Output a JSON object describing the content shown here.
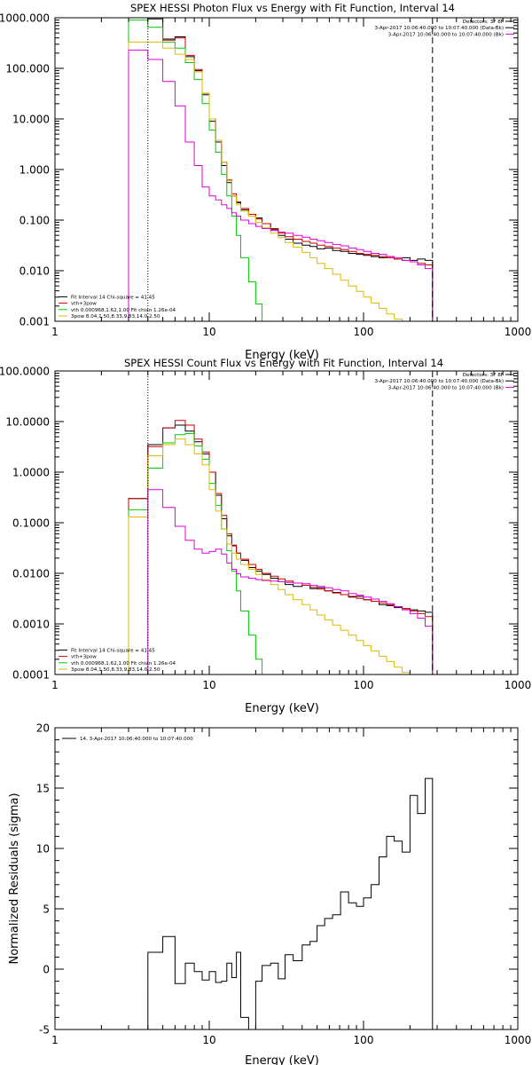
{
  "chart_data": [
    {
      "type": "line",
      "title": "SPEX HESSI Photon Flux vs Energy with Fit Function, Interval 14",
      "xlabel": "Energy (keV)",
      "ylabel": "",
      "xscale": "log",
      "yscale": "log",
      "xlim": [
        1,
        1000
      ],
      "ylim": [
        0.001,
        1000
      ],
      "x_ticks": [
        1,
        10,
        100,
        1000
      ],
      "x_tick_labels": [
        "1",
        "10",
        "100",
        "1000"
      ],
      "y_ticks": [
        0.001,
        0.01,
        0.1,
        1,
        10,
        100,
        1000
      ],
      "y_tick_labels": [
        "0.001",
        "0.010",
        "0.100",
        "1.000",
        "10.000",
        "100.000",
        "1000.000"
      ],
      "vlines": [
        {
          "x": 4,
          "style": "dotted"
        },
        {
          "x": 280,
          "style": "dashed"
        }
      ],
      "legend_top": {
        "position": "top-right",
        "lines": [
          "Detectors: 3F 8F",
          "3-Apr-2017 10:06:40.000 to 10:07:40.000 (Data-Bk)",
          "3-Apr-2017 10:06:40.000 to 10:07:40.000 (Bk)"
        ],
        "colors": [
          "#000000",
          "#000000",
          "#dd00dd"
        ]
      },
      "legend_bottom": {
        "position": "bottom-left",
        "lines": [
          "Fit Interval 14    Chi-square = 41.45",
          "vth+3pow",
          "vth 0.000968,1.62,1.00  Fit chian 1.26e-04",
          "3pow 8.04,1.50,8.33,9.83,14.0,2.50"
        ],
        "colors": [
          "#000000",
          "#cc0000",
          "#00cc00",
          "#ddbb00"
        ]
      },
      "series": [
        {
          "color": "#000000",
          "edges": [
            3,
            4,
            5,
            6,
            7,
            8,
            9,
            10,
            11,
            12,
            13,
            14,
            15,
            16,
            18,
            20,
            22,
            25,
            28,
            31,
            35,
            40,
            45,
            50,
            56,
            63,
            71,
            80,
            90,
            100,
            112,
            126,
            141,
            158,
            178,
            200,
            224,
            251,
            280
          ],
          "values": [
            1000,
            950,
            380,
            420,
            170,
            90,
            30,
            9,
            3.5,
            1.2,
            0.55,
            0.3,
            0.22,
            0.16,
            0.13,
            0.11,
            0.085,
            0.065,
            0.05,
            0.042,
            0.035,
            0.032,
            0.03,
            0.027,
            0.028,
            0.025,
            0.024,
            0.022,
            0.021,
            0.02,
            0.019,
            0.018,
            0.019,
            0.017,
            0.018,
            0.016,
            0.017,
            0.016
          ]
        },
        {
          "color": "#cc0000",
          "edges": [
            3,
            4,
            5,
            6,
            7,
            8,
            9,
            10,
            11,
            12,
            13,
            14,
            15,
            16,
            18,
            20,
            22,
            25,
            28,
            31,
            35,
            40,
            45,
            50,
            56,
            63,
            71,
            80,
            90,
            100,
            112,
            126,
            141,
            158,
            178,
            200,
            224,
            251,
            280
          ],
          "values": [
            1000,
            1000,
            360,
            400,
            180,
            95,
            32,
            10,
            3.8,
            1.4,
            0.62,
            0.33,
            0.23,
            0.17,
            0.13,
            0.105,
            0.085,
            0.068,
            0.055,
            0.047,
            0.042,
            0.038,
            0.035,
            0.032,
            0.03,
            0.028,
            0.026,
            0.024,
            0.022,
            0.021,
            0.02,
            0.019,
            0.018,
            0.017,
            0.016,
            0.015,
            0.014,
            0.013
          ]
        },
        {
          "color": "#00cc00",
          "edges": [
            3,
            4,
            5,
            6,
            7,
            8,
            9,
            10,
            11,
            12,
            13,
            14,
            15,
            16,
            18,
            20,
            22,
            25
          ],
          "values": [
            900,
            650,
            330,
            250,
            130,
            60,
            20,
            6,
            2.2,
            0.8,
            0.3,
            0.12,
            0.05,
            0.018,
            0.006,
            0.0022,
            0.0008
          ]
        },
        {
          "color": "#ddbb00",
          "edges": [
            3,
            4,
            5,
            6,
            7,
            8,
            9,
            10,
            11,
            12,
            13,
            14,
            15,
            16,
            18,
            20,
            22,
            25,
            28,
            31,
            35,
            40,
            45,
            50,
            56,
            63,
            71,
            80,
            90,
            100,
            112,
            126,
            141,
            158,
            178,
            200
          ],
          "values": [
            330,
            330,
            250,
            190,
            150,
            85,
            32,
            10,
            3.8,
            1.4,
            0.6,
            0.3,
            0.2,
            0.15,
            0.12,
            0.09,
            0.07,
            0.055,
            0.045,
            0.036,
            0.029,
            0.023,
            0.018,
            0.014,
            0.011,
            0.0085,
            0.0065,
            0.005,
            0.0039,
            0.003,
            0.0023,
            0.0018,
            0.0014,
            0.0011,
            0.0008
          ]
        },
        {
          "color": "#dd00dd",
          "edges": [
            3,
            4,
            5,
            6,
            7,
            8,
            9,
            10,
            11,
            12,
            13,
            14,
            15,
            16,
            18,
            20,
            22,
            25,
            28,
            31,
            35,
            40,
            45,
            50,
            56,
            63,
            71,
            80,
            90,
            100,
            112,
            126,
            141,
            158,
            178,
            200,
            224,
            251,
            280
          ],
          "values": [
            230,
            150,
            55,
            18,
            3.5,
            1.2,
            0.45,
            0.3,
            0.25,
            0.2,
            0.17,
            0.14,
            0.12,
            0.1,
            0.085,
            0.075,
            0.068,
            0.062,
            0.058,
            0.055,
            0.05,
            0.046,
            0.042,
            0.039,
            0.036,
            0.033,
            0.031,
            0.028,
            0.026,
            0.024,
            0.022,
            0.021,
            0.019,
            0.018,
            0.016,
            0.015,
            0.013,
            0.011
          ]
        }
      ]
    },
    {
      "type": "line",
      "title": "SPEX HESSI Count Flux vs Energy with Fit Function, Interval 14",
      "xlabel": "Energy (keV)",
      "ylabel": "",
      "xscale": "log",
      "yscale": "log",
      "xlim": [
        1,
        1000
      ],
      "ylim": [
        0.0001,
        100
      ],
      "x_ticks": [
        1,
        10,
        100,
        1000
      ],
      "x_tick_labels": [
        "1",
        "10",
        "100",
        "1000"
      ],
      "y_ticks": [
        0.0001,
        0.001,
        0.01,
        0.1,
        1,
        10,
        100
      ],
      "y_tick_labels": [
        "0.0001",
        "0.0010",
        "0.0100",
        "0.1000",
        "1.0000",
        "10.0000",
        "100.0000"
      ],
      "vlines": [
        {
          "x": 4,
          "style": "dotted"
        },
        {
          "x": 280,
          "style": "dashed"
        }
      ],
      "legend_top": {
        "position": "top-right",
        "lines": [
          "Detectors: 3F 8F",
          "3-Apr-2017 10:06:40.000 to 10:07:40.000 (Data-Bk)",
          "3-Apr-2017 10:06:40.000 to 10:07:40.000 (Bk)"
        ],
        "colors": [
          "#000000",
          "#000000",
          "#dd00dd"
        ]
      },
      "legend_bottom": {
        "position": "bottom-left",
        "lines": [
          "Fit Interval 14    Chi-square = 41.45",
          "vth+3pow",
          "vth 0.000968,1.62,1.00  Fit chian 1.26e-04",
          "3pow 8.04,1.50,8.33,9.83,14.0,2.50"
        ],
        "colors": [
          "#000000",
          "#cc0000",
          "#00cc00",
          "#ddbb00"
        ]
      },
      "series": [
        {
          "color": "#000000",
          "edges": [
            3,
            4,
            5,
            6,
            7,
            8,
            9,
            10,
            11,
            12,
            13,
            14,
            15,
            16,
            18,
            20,
            22,
            25,
            28,
            31,
            35,
            40,
            45,
            50,
            56,
            63,
            71,
            80,
            90,
            100,
            112,
            126,
            141,
            158,
            178,
            200,
            224,
            251,
            280
          ],
          "values": [
            0.3,
            3.5,
            7.5,
            8.5,
            6.5,
            4,
            2.3,
            1,
            0.35,
            0.12,
            0.055,
            0.035,
            0.025,
            0.018,
            0.013,
            0.011,
            0.0095,
            0.008,
            0.0068,
            0.006,
            0.0055,
            0.0058,
            0.005,
            0.0052,
            0.0045,
            0.0042,
            0.0038,
            0.0034,
            0.0035,
            0.003,
            0.0028,
            0.0024,
            0.0023,
            0.0021,
            0.002,
            0.0019,
            0.0018,
            0.0017
          ]
        },
        {
          "color": "#cc0000",
          "edges": [
            3,
            4,
            5,
            6,
            7,
            8,
            9,
            10,
            11,
            12,
            13,
            14,
            15,
            16,
            18,
            20,
            22,
            25,
            28,
            31,
            35,
            40,
            45,
            50,
            56,
            63,
            71,
            80,
            90,
            100,
            112,
            126,
            141,
            158,
            178,
            200,
            224,
            251,
            280
          ],
          "values": [
            0.3,
            3.2,
            7.5,
            10.5,
            8.5,
            4.5,
            2.5,
            1,
            0.38,
            0.14,
            0.06,
            0.036,
            0.025,
            0.019,
            0.015,
            0.012,
            0.01,
            0.0088,
            0.0078,
            0.007,
            0.0064,
            0.0058,
            0.0053,
            0.0049,
            0.0045,
            0.0041,
            0.0038,
            0.0035,
            0.0032,
            0.003,
            0.0028,
            0.0026,
            0.0024,
            0.0022,
            0.002,
            0.0018,
            0.0016,
            0.0014
          ]
        },
        {
          "color": "#00cc00",
          "edges": [
            3,
            4,
            5,
            6,
            7,
            8,
            9,
            10,
            11,
            12,
            13,
            14,
            15,
            16,
            18,
            20,
            22,
            25
          ],
          "values": [
            0.18,
            1.2,
            3.8,
            5.5,
            5.8,
            3.3,
            1.8,
            0.6,
            0.22,
            0.075,
            0.028,
            0.011,
            0.0045,
            0.0018,
            0.0006,
            0.0002,
            6e-05
          ]
        },
        {
          "color": "#ddbb00",
          "edges": [
            3,
            4,
            5,
            6,
            7,
            8,
            9,
            10,
            11,
            12,
            13,
            14,
            15,
            16,
            18,
            20,
            22,
            25,
            28,
            31,
            35,
            40,
            45,
            50,
            56,
            63,
            71,
            80,
            90,
            100,
            112,
            126,
            141,
            158,
            178,
            200
          ],
          "values": [
            0.13,
            2.1,
            3.5,
            4.5,
            3.5,
            2.3,
            1.4,
            0.45,
            0.17,
            0.075,
            0.038,
            0.025,
            0.019,
            0.015,
            0.012,
            0.0095,
            0.0075,
            0.006,
            0.0048,
            0.0038,
            0.003,
            0.0024,
            0.0019,
            0.0015,
            0.0012,
            0.00095,
            0.00075,
            0.0006,
            0.00047,
            0.00037,
            0.00029,
            0.00023,
            0.00018,
            0.00014,
            0.00011
          ]
        },
        {
          "color": "#dd00dd",
          "edges": [
            3,
            4,
            5,
            6,
            7,
            8,
            9,
            10,
            11,
            12,
            13,
            14,
            15,
            16,
            18,
            20,
            22,
            25,
            28,
            31,
            35,
            40,
            45,
            50,
            56,
            63,
            71,
            80,
            90,
            100,
            112,
            126,
            141,
            158,
            178,
            200,
            224,
            251,
            280
          ],
          "values": [
            0.0001,
            0.45,
            0.2,
            0.085,
            0.045,
            0.03,
            0.025,
            0.027,
            0.03,
            0.024,
            0.016,
            0.012,
            0.0098,
            0.0085,
            0.008,
            0.0075,
            0.0072,
            0.007,
            0.0068,
            0.0066,
            0.0064,
            0.0062,
            0.0058,
            0.0055,
            0.0052,
            0.0048,
            0.0045,
            0.004,
            0.0037,
            0.0034,
            0.0031,
            0.0028,
            0.0025,
            0.0022,
            0.0019,
            0.0016,
            0.0013,
            0.0009
          ]
        }
      ]
    },
    {
      "type": "line",
      "title": "",
      "xlabel": "Energy (keV)",
      "ylabel": "Normalized Residuals (sigma)",
      "xscale": "log",
      "yscale": "linear",
      "xlim": [
        1,
        1000
      ],
      "ylim": [
        -5,
        20
      ],
      "x_ticks": [
        1,
        10,
        100,
        1000
      ],
      "x_tick_labels": [
        "1",
        "10",
        "100",
        "1000"
      ],
      "y_ticks": [
        -5,
        0,
        5,
        10,
        15,
        20
      ],
      "y_tick_labels": [
        "-5",
        "0",
        "5",
        "10",
        "15",
        "20"
      ],
      "vlines": [],
      "legend_top": {
        "position": "top-left",
        "lines": [
          "14,  3-Apr-2017 10:06:40.000 to 10:07:40.000"
        ],
        "colors": [
          "#000000"
        ]
      },
      "legend_bottom": {
        "position": "none",
        "lines": [],
        "colors": []
      },
      "series": [
        {
          "color": "#000000",
          "edges": [
            4,
            5,
            6,
            7,
            8,
            9,
            10,
            11,
            12,
            13,
            14,
            15,
            16,
            18,
            20,
            22,
            25,
            28,
            31,
            35,
            40,
            45,
            50,
            56,
            63,
            71,
            80,
            90,
            100,
            112,
            126,
            141,
            158,
            178,
            200,
            224,
            251,
            280
          ],
          "values": [
            1.4,
            2.7,
            -1.2,
            0.5,
            -0.2,
            -0.9,
            -0.2,
            -1.1,
            -1.0,
            0.5,
            -0.7,
            1.4,
            -4.0,
            -5.0,
            -1.0,
            0.3,
            0.5,
            -0.8,
            1.2,
            0.7,
            2.0,
            2.3,
            3.6,
            4.2,
            4.5,
            6.4,
            5.5,
            5.2,
            5.9,
            7.0,
            9.3,
            11.0,
            10.6,
            9.7,
            14.4,
            12.9,
            15.8
          ]
        }
      ]
    }
  ]
}
